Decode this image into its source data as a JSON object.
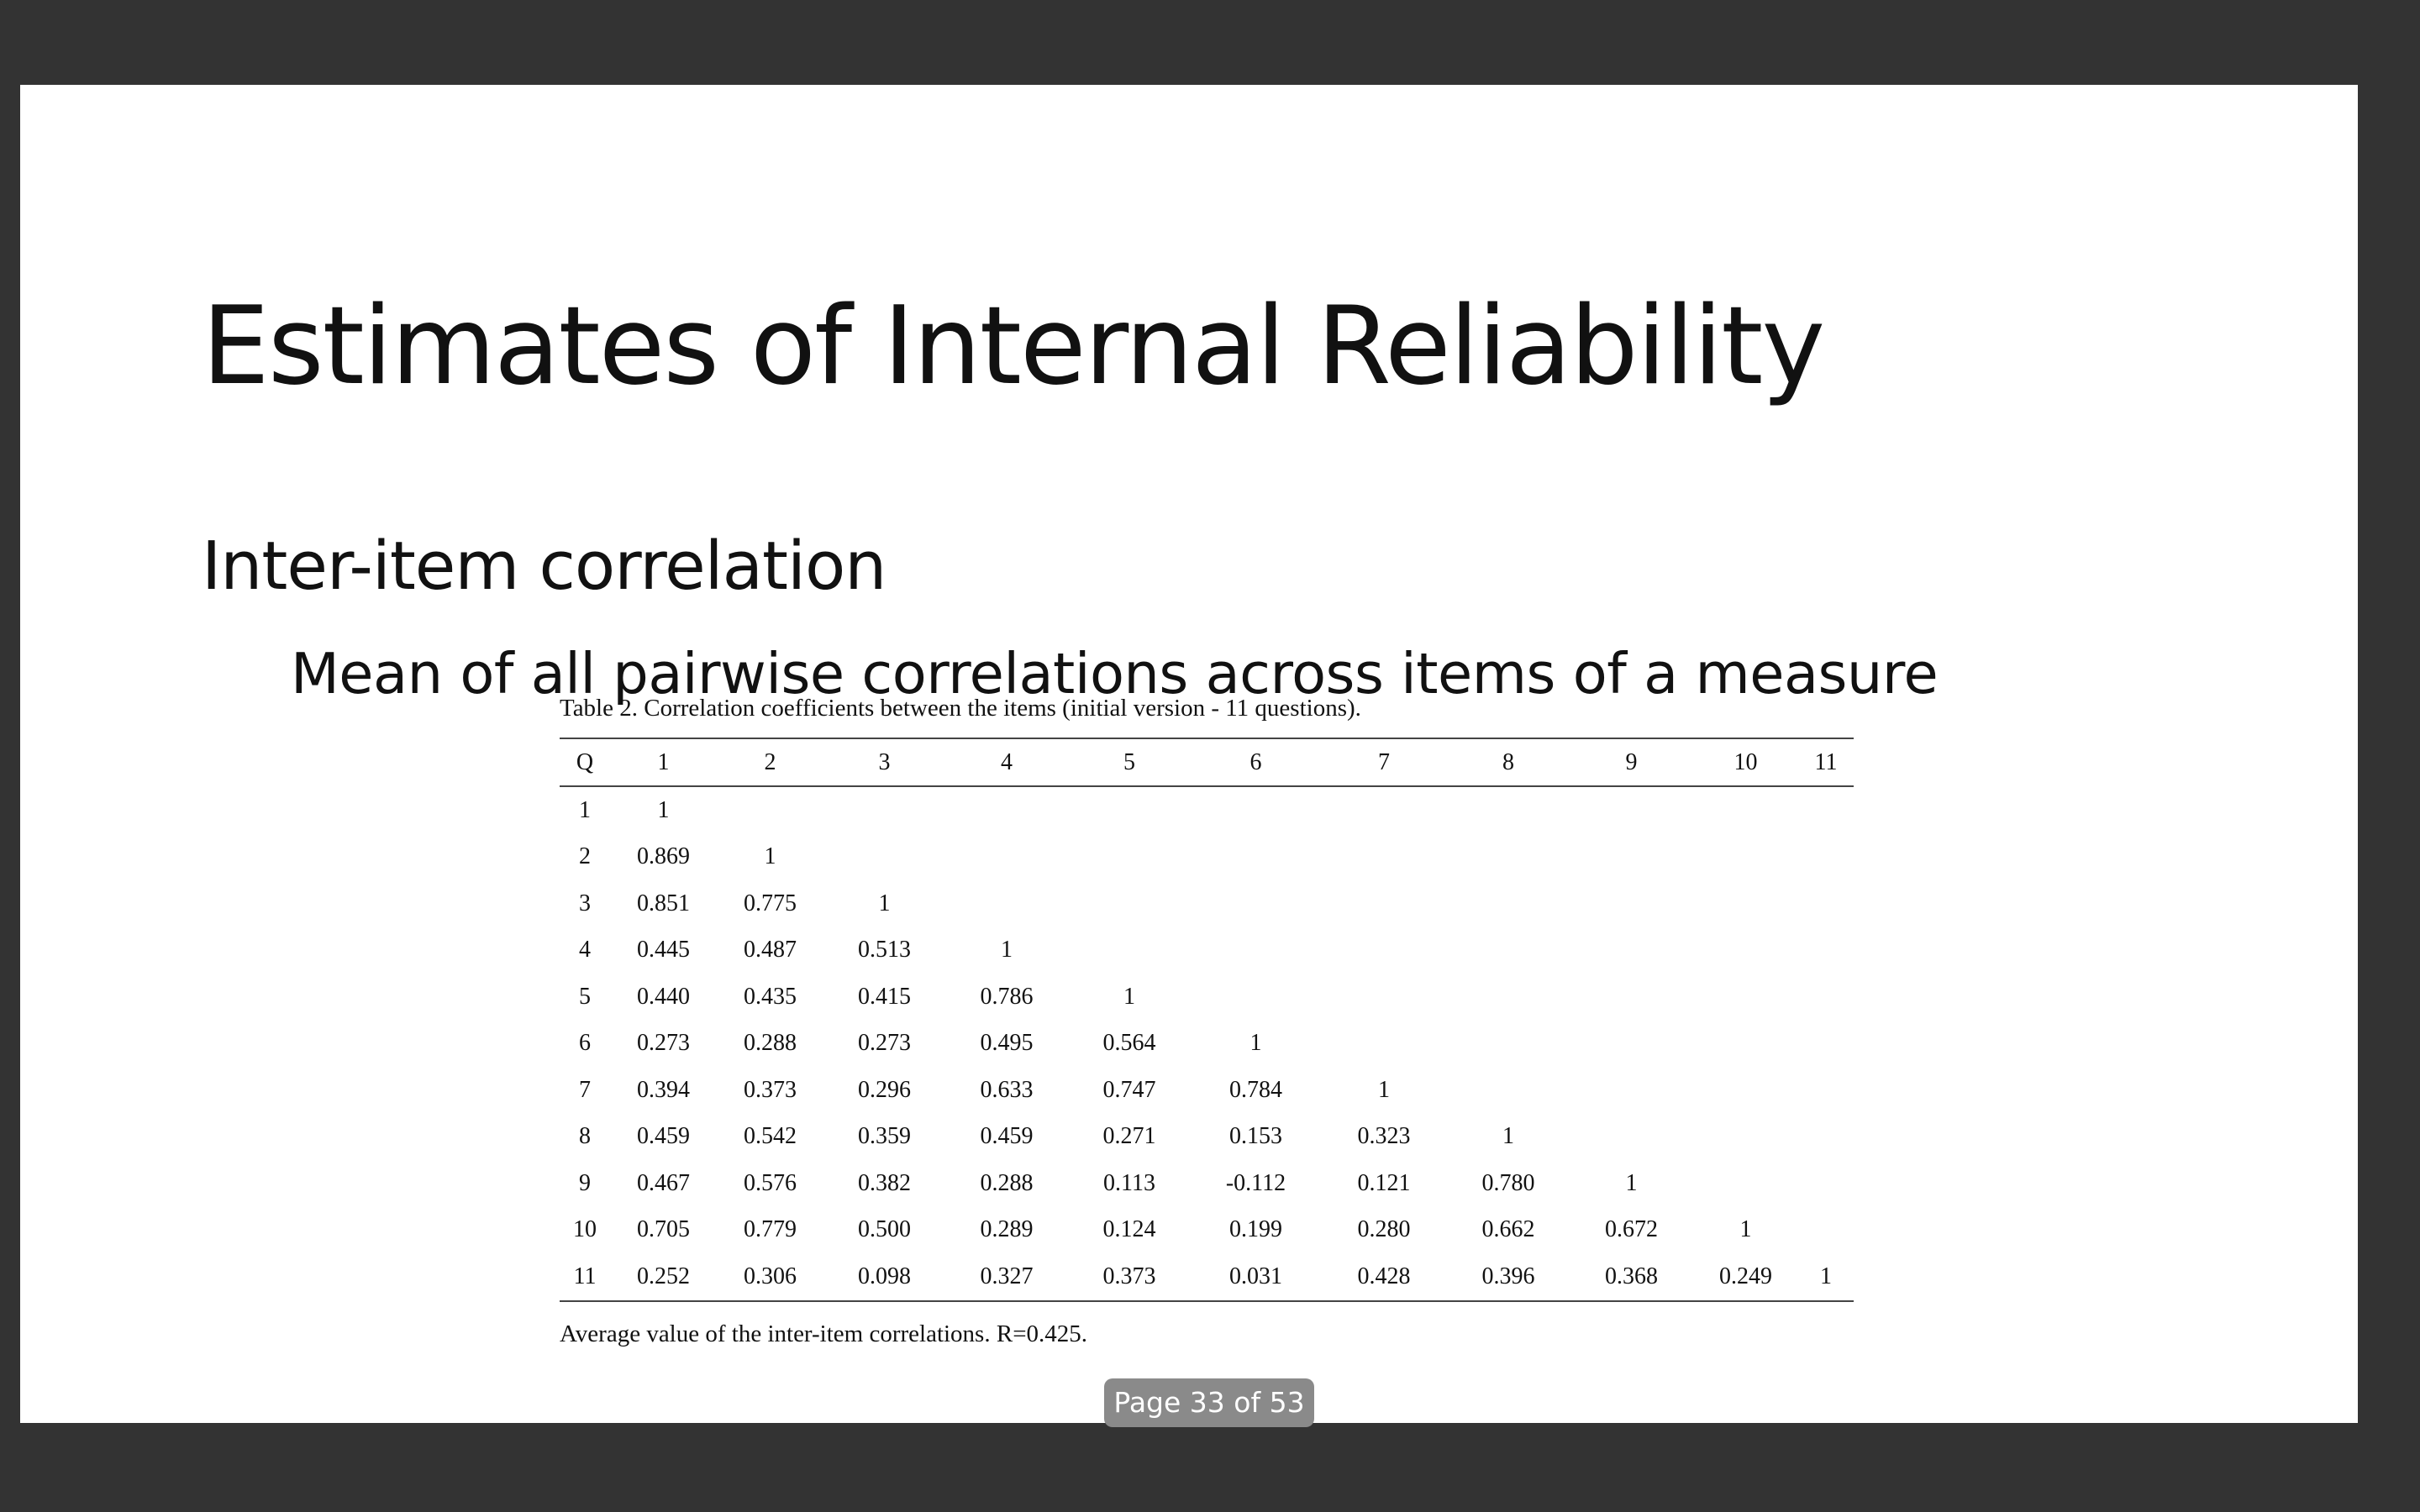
{
  "slide": {
    "title": "Estimates of Internal Reliability",
    "bullet_1": "Inter-item correlation",
    "bullet_2": "Mean of all pairwise correlations across items of a measure"
  },
  "table": {
    "caption": "Table 2. Correlation coefficients between the items (initial version - 11 questions).",
    "headers": [
      "Q",
      "1",
      "2",
      "3",
      "4",
      "5",
      "6",
      "7",
      "8",
      "9",
      "10",
      "11"
    ],
    "rows": [
      [
        "1",
        "1",
        "",
        "",
        "",
        "",
        "",
        "",
        "",
        "",
        "",
        ""
      ],
      [
        "2",
        "0.869",
        "1",
        "",
        "",
        "",
        "",
        "",
        "",
        "",
        "",
        ""
      ],
      [
        "3",
        "0.851",
        "0.775",
        "1",
        "",
        "",
        "",
        "",
        "",
        "",
        "",
        ""
      ],
      [
        "4",
        "0.445",
        "0.487",
        "0.513",
        "1",
        "",
        "",
        "",
        "",
        "",
        "",
        ""
      ],
      [
        "5",
        "0.440",
        "0.435",
        "0.415",
        "0.786",
        "1",
        "",
        "",
        "",
        "",
        "",
        ""
      ],
      [
        "6",
        "0.273",
        "0.288",
        "0.273",
        "0.495",
        "0.564",
        "1",
        "",
        "",
        "",
        "",
        ""
      ],
      [
        "7",
        "0.394",
        "0.373",
        "0.296",
        "0.633",
        "0.747",
        "0.784",
        "1",
        "",
        "",
        "",
        ""
      ],
      [
        "8",
        "0.459",
        "0.542",
        "0.359",
        "0.459",
        "0.271",
        "0.153",
        "0.323",
        "1",
        "",
        "",
        ""
      ],
      [
        "9",
        "0.467",
        "0.576",
        "0.382",
        "0.288",
        "0.113",
        "-0.112",
        "0.121",
        "0.780",
        "1",
        "",
        ""
      ],
      [
        "10",
        "0.705",
        "0.779",
        "0.500",
        "0.289",
        "0.124",
        "0.199",
        "0.280",
        "0.662",
        "0.672",
        "1",
        ""
      ],
      [
        "11",
        "0.252",
        "0.306",
        "0.098",
        "0.327",
        "0.373",
        "0.031",
        "0.428",
        "0.396",
        "0.368",
        "0.249",
        "1"
      ]
    ],
    "note": "Average value of the inter-item correlations. R=0.425."
  },
  "viewer": {
    "page_indicator": "Page 33 of 53",
    "background_color": "#333333",
    "slide_color": "#ffffff"
  }
}
